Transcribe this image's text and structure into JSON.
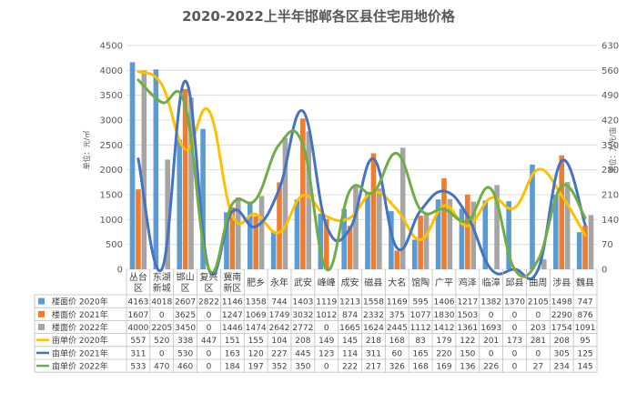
{
  "chart_data": {
    "type": "bar",
    "title": "2020-2022上半年邯郸各区县住宅用地价格",
    "ylabel_left": "单位：元/㎡",
    "ylabel_right": "单位：万元/亩",
    "ylim_left": [
      0,
      4500
    ],
    "ylim_right": [
      0,
      630
    ],
    "yticks_left": [
      0,
      500,
      1000,
      1500,
      2000,
      2500,
      3000,
      3500,
      4000,
      4500
    ],
    "yticks_right": [
      0,
      70,
      140,
      210,
      280,
      350,
      420,
      490,
      560,
      630
    ],
    "grid": true,
    "categories": [
      "丛台区",
      "东湖新城",
      "邯山区",
      "复兴区",
      "冀南新区",
      "肥乡",
      "永年",
      "武安",
      "峰峰",
      "成安",
      "磁县",
      "大名",
      "馆陶",
      "广平",
      "鸡泽",
      "临漳",
      "邱县",
      "曲周",
      "涉县",
      "魏县"
    ],
    "category_lines": [
      [
        "丛台",
        "区"
      ],
      [
        "东湖",
        "新城"
      ],
      [
        "邯山",
        "区"
      ],
      [
        "复兴",
        "区"
      ],
      [
        "冀南",
        "新区"
      ],
      [
        "肥乡"
      ],
      [
        "永年"
      ],
      [
        "武安"
      ],
      [
        "峰峰"
      ],
      [
        "成安"
      ],
      [
        "磁县"
      ],
      [
        "大名"
      ],
      [
        "馆陶"
      ],
      [
        "广平"
      ],
      [
        "鸡泽"
      ],
      [
        "临漳"
      ],
      [
        "邱县"
      ],
      [
        "曲周"
      ],
      [
        "涉县"
      ],
      [
        "魏县"
      ]
    ],
    "series": [
      {
        "name": "楼面价 2020年",
        "kind": "bar",
        "axis": "left",
        "color": "#5b9bd5",
        "values": [
          4163,
          4018,
          2607,
          2822,
          1146,
          1358,
          744,
          1403,
          1119,
          1213,
          1558,
          1169,
          595,
          1406,
          1217,
          1382,
          1370,
          2105,
          1498,
          747
        ],
        "labels": [
          "4163",
          "4018",
          "2607",
          "2822",
          "1146",
          "1358",
          "744",
          "1403",
          "1119",
          "1213",
          "1558",
          "1169",
          "595",
          "1406",
          "1217",
          "1382",
          "1370",
          "2105",
          "1498",
          "747"
        ]
      },
      {
        "name": "楼面价 2021年",
        "kind": "bar",
        "axis": "left",
        "color": "#ed7d31",
        "values": [
          1607,
          0,
          3625,
          0,
          1247,
          1069,
          1749,
          3032,
          1012,
          874,
          2332,
          375,
          1077,
          1830,
          1503,
          0,
          0,
          0,
          2290,
          876
        ],
        "labels": [
          "1607",
          "0",
          "3625",
          "0",
          "1247",
          "1069",
          "1749",
          "3032",
          "1012",
          "874",
          "2332",
          "375",
          "1077",
          "1830",
          "1503",
          "0",
          "0",
          "0",
          "2290",
          "876"
        ]
      },
      {
        "name": "楼面价 2022年",
        "kind": "bar",
        "axis": "left",
        "color": "#a5a5a5",
        "values": [
          4000,
          2205,
          3450,
          0,
          1446,
          1474,
          2642,
          2772,
          0,
          1665,
          1624,
          2445,
          1112,
          1412,
          1361,
          1693,
          0,
          203,
          1754,
          1091
        ],
        "labels": [
          "4000",
          "2205",
          "3450",
          "0",
          "1446",
          "1474",
          "2642",
          "2772",
          "0",
          "1665",
          "1624",
          "2445",
          "1112",
          "1412",
          "1361",
          "1693",
          "0",
          "203",
          "1754",
          "1091"
        ]
      },
      {
        "name": "亩单价 2020年",
        "kind": "line",
        "axis": "right",
        "color": "#ffc000",
        "values": [
          557,
          520,
          338,
          447,
          151,
          155,
          104,
          208,
          149,
          145,
          218,
          168,
          83,
          179,
          122,
          201,
          173,
          281,
          208,
          95
        ],
        "labels": [
          "557",
          "520",
          "338",
          "447",
          "151",
          "155",
          "104",
          "208",
          "149",
          "145",
          "218",
          "168",
          "83",
          "179",
          "122",
          "201",
          "173",
          "281",
          "208",
          "95"
        ]
      },
      {
        "name": "亩单价 2021年",
        "kind": "line",
        "axis": "right",
        "color": "#4472c4",
        "values": [
          311,
          0,
          530,
          0,
          163,
          120,
          227,
          445,
          123,
          114,
          311,
          60,
          165,
          220,
          150,
          0,
          0,
          0,
          305,
          125
        ],
        "labels": [
          "311",
          "0",
          "530",
          "0",
          "163",
          "120",
          "227",
          "445",
          "123",
          "114",
          "311",
          "60",
          "165",
          "220",
          "150",
          "0",
          "0",
          "0",
          "305",
          "125"
        ]
      },
      {
        "name": "亩单价 2022年",
        "kind": "line",
        "axis": "right",
        "color": "#70ad47",
        "values": [
          533,
          470,
          460,
          0,
          184,
          197,
          352,
          350,
          0,
          222,
          217,
          326,
          168,
          169,
          136,
          226,
          0,
          27,
          234,
          145
        ],
        "labels": [
          "533",
          "470",
          "460",
          "0",
          "184",
          "197",
          "352",
          "350",
          "0",
          "222",
          "217",
          "326",
          "168",
          "169",
          "136",
          "226",
          "0",
          "27",
          "234",
          "145"
        ]
      }
    ]
  }
}
